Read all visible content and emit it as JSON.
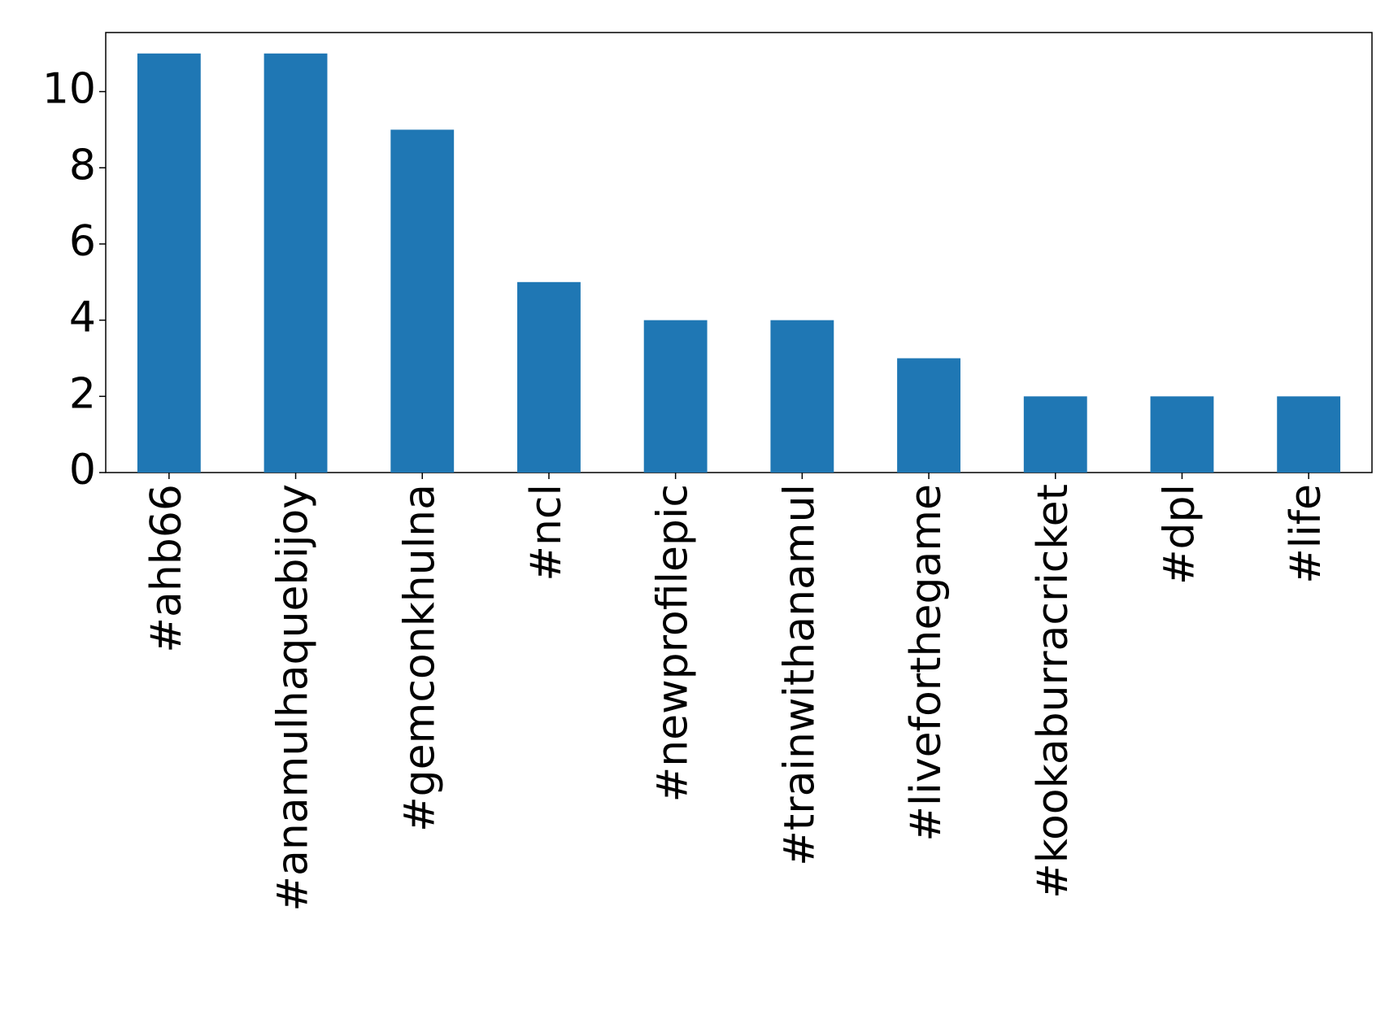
{
  "chart_data": {
    "type": "bar",
    "categories": [
      "#ahb66",
      "#anamulhaquebijoy",
      "#gemconkhulna",
      "#ncl",
      "#newprofilepic",
      "#trainwithanamul",
      "#liveforthegame",
      "#kookaburracricket",
      "#dpl",
      "#life"
    ],
    "values": [
      11,
      11,
      9,
      5,
      4,
      4,
      3,
      2,
      2,
      2
    ],
    "color": "#1f77b4",
    "ylim": [
      0,
      11.55
    ],
    "yticks": [
      0,
      2,
      4,
      6,
      8,
      10
    ],
    "grid": false
  }
}
